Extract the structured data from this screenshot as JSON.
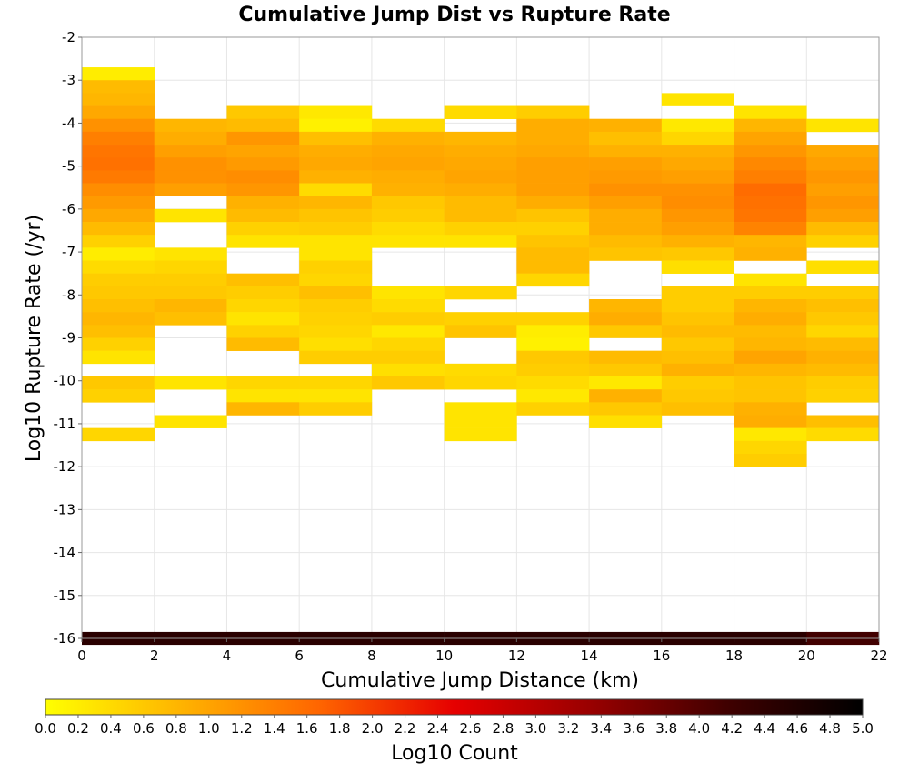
{
  "chart_data": {
    "type": "heatmap",
    "title": "Cumulative Jump Dist vs Rupture Rate",
    "xlabel": "Cumulative Jump Distance (km)",
    "ylabel": "Log10 Rupture Rate (/yr)",
    "xlim": [
      0,
      22
    ],
    "ylim": [
      -16,
      -2
    ],
    "x_ticks": [
      "0",
      "2",
      "4",
      "6",
      "8",
      "10",
      "12",
      "14",
      "16",
      "18",
      "20",
      "22"
    ],
    "y_ticks": [
      "-2",
      "-3",
      "-4",
      "-5",
      "-6",
      "-7",
      "-8",
      "-9",
      "-10",
      "-11",
      "-12",
      "-13",
      "-14",
      "-15",
      "-16"
    ],
    "grid": true,
    "x_bin_width": 2,
    "y_bin_height": 0.3,
    "value_label": "Log10 Count",
    "colorbar": {
      "label": "Log10 Count",
      "range": [
        0,
        5
      ],
      "ticks": [
        "0.0",
        "0.2",
        "0.4",
        "0.6",
        "0.8",
        "1.0",
        "1.2",
        "1.4",
        "1.6",
        "1.8",
        "2.0",
        "2.2",
        "2.4",
        "2.6",
        "2.8",
        "3.0",
        "3.2",
        "3.4",
        "3.6",
        "3.8",
        "4.0",
        "4.2",
        "4.4",
        "4.6",
        "4.8",
        "5.0"
      ],
      "colors": [
        "#ffff00",
        "#ffb300",
        "#ff6600",
        "#e60000",
        "#990000",
        "#400000",
        "#000000"
      ],
      "placement": "bottom"
    },
    "columns": [
      {
        "x_start": 0,
        "cells": [
          [
            -3.0,
            0.2
          ],
          [
            -3.3,
            0.75
          ],
          [
            -3.6,
            0.8
          ],
          [
            -3.9,
            0.95
          ],
          [
            -4.2,
            1.2
          ],
          [
            -4.5,
            1.4
          ],
          [
            -4.8,
            1.5
          ],
          [
            -5.1,
            1.55
          ],
          [
            -5.4,
            1.45
          ],
          [
            -5.7,
            1.25
          ],
          [
            -6.0,
            1.1
          ],
          [
            -6.3,
            0.95
          ],
          [
            -6.6,
            0.75
          ],
          [
            -6.9,
            0.5
          ],
          [
            -7.2,
            0.2
          ],
          [
            -7.5,
            0.4
          ],
          [
            -7.8,
            0.55
          ],
          [
            -8.1,
            0.6
          ],
          [
            -8.4,
            0.7
          ],
          [
            -8.7,
            0.8
          ],
          [
            -9.0,
            0.7
          ],
          [
            -9.3,
            0.5
          ],
          [
            -9.6,
            0.3
          ],
          [
            -10.2,
            0.6
          ],
          [
            -10.5,
            0.5
          ],
          [
            -11.4,
            0.45
          ]
        ]
      },
      {
        "x_start": 2,
        "cells": [
          [
            -4.2,
            0.8
          ],
          [
            -4.5,
            0.9
          ],
          [
            -4.8,
            1.05
          ],
          [
            -5.1,
            1.2
          ],
          [
            -5.4,
            1.2
          ],
          [
            -5.7,
            1.05
          ],
          [
            -6.3,
            0.3
          ],
          [
            -7.2,
            0.3
          ],
          [
            -7.5,
            0.45
          ],
          [
            -7.8,
            0.55
          ],
          [
            -8.1,
            0.6
          ],
          [
            -8.4,
            0.8
          ],
          [
            -8.7,
            0.7
          ],
          [
            -10.2,
            0.3
          ],
          [
            -11.1,
            0.3
          ]
        ]
      },
      {
        "x_start": 4,
        "cells": [
          [
            -3.9,
            0.6
          ],
          [
            -4.2,
            0.75
          ],
          [
            -4.5,
            1.15
          ],
          [
            -4.8,
            1.0
          ],
          [
            -5.1,
            1.1
          ],
          [
            -5.4,
            1.25
          ],
          [
            -5.7,
            1.15
          ],
          [
            -6.0,
            0.85
          ],
          [
            -6.3,
            0.75
          ],
          [
            -6.6,
            0.5
          ],
          [
            -6.9,
            0.3
          ],
          [
            -7.8,
            0.7
          ],
          [
            -8.1,
            0.55
          ],
          [
            -8.4,
            0.45
          ],
          [
            -8.7,
            0.3
          ],
          [
            -9.0,
            0.5
          ],
          [
            -9.3,
            0.75
          ],
          [
            -10.2,
            0.45
          ],
          [
            -10.5,
            0.3
          ],
          [
            -10.8,
            0.8
          ]
        ]
      },
      {
        "x_start": 6,
        "cells": [
          [
            -3.9,
            0.25
          ],
          [
            -4.2,
            0.15
          ],
          [
            -4.5,
            0.7
          ],
          [
            -4.8,
            0.9
          ],
          [
            -5.1,
            0.95
          ],
          [
            -5.4,
            0.85
          ],
          [
            -5.7,
            0.4
          ],
          [
            -6.0,
            0.8
          ],
          [
            -6.3,
            0.65
          ],
          [
            -6.6,
            0.55
          ],
          [
            -6.9,
            0.3
          ],
          [
            -7.2,
            0.3
          ],
          [
            -7.5,
            0.5
          ],
          [
            -7.8,
            0.45
          ],
          [
            -8.1,
            0.7
          ],
          [
            -8.4,
            0.55
          ],
          [
            -8.7,
            0.5
          ],
          [
            -9.0,
            0.45
          ],
          [
            -9.3,
            0.35
          ],
          [
            -9.6,
            0.55
          ],
          [
            -10.2,
            0.45
          ],
          [
            -10.5,
            0.3
          ],
          [
            -10.8,
            0.55
          ]
        ]
      },
      {
        "x_start": 8,
        "cells": [
          [
            -4.2,
            0.4
          ],
          [
            -4.5,
            0.85
          ],
          [
            -4.8,
            0.95
          ],
          [
            -5.1,
            1.0
          ],
          [
            -5.4,
            0.9
          ],
          [
            -5.7,
            0.85
          ],
          [
            -6.0,
            0.6
          ],
          [
            -6.3,
            0.55
          ],
          [
            -6.6,
            0.4
          ],
          [
            -6.9,
            0.3
          ],
          [
            -8.1,
            0.3
          ],
          [
            -8.4,
            0.4
          ],
          [
            -8.7,
            0.55
          ],
          [
            -9.0,
            0.25
          ],
          [
            -9.3,
            0.45
          ],
          [
            -9.6,
            0.55
          ],
          [
            -9.9,
            0.35
          ],
          [
            -10.2,
            0.6
          ]
        ]
      },
      {
        "x_start": 10,
        "cells": [
          [
            -3.9,
            0.4
          ],
          [
            -4.5,
            0.8
          ],
          [
            -4.8,
            0.9
          ],
          [
            -5.1,
            0.95
          ],
          [
            -5.4,
            1.0
          ],
          [
            -5.7,
            0.9
          ],
          [
            -6.0,
            0.75
          ],
          [
            -6.3,
            0.75
          ],
          [
            -6.6,
            0.5
          ],
          [
            -6.9,
            0.3
          ],
          [
            -8.1,
            0.45
          ],
          [
            -8.7,
            0.5
          ],
          [
            -9.0,
            0.65
          ],
          [
            -9.9,
            0.4
          ],
          [
            -10.2,
            0.45
          ],
          [
            -10.8,
            0.3
          ],
          [
            -11.1,
            0.3
          ],
          [
            -11.4,
            0.3
          ]
        ]
      },
      {
        "x_start": 12,
        "cells": [
          [
            -3.9,
            0.55
          ],
          [
            -4.2,
            0.9
          ],
          [
            -4.5,
            0.9
          ],
          [
            -4.8,
            0.95
          ],
          [
            -5.1,
            1.05
          ],
          [
            -5.4,
            1.05
          ],
          [
            -5.7,
            1.05
          ],
          [
            -6.0,
            0.9
          ],
          [
            -6.3,
            0.65
          ],
          [
            -6.6,
            0.5
          ],
          [
            -6.9,
            0.65
          ],
          [
            -7.2,
            0.75
          ],
          [
            -7.5,
            0.75
          ],
          [
            -7.8,
            0.45
          ],
          [
            -8.7,
            0.5
          ],
          [
            -9.0,
            0.2
          ],
          [
            -9.3,
            0.15
          ],
          [
            -9.6,
            0.6
          ],
          [
            -9.9,
            0.55
          ],
          [
            -10.2,
            0.4
          ],
          [
            -10.5,
            0.25
          ],
          [
            -10.8,
            0.5
          ]
        ]
      },
      {
        "x_start": 14,
        "cells": [
          [
            -4.2,
            0.85
          ],
          [
            -4.5,
            0.7
          ],
          [
            -4.8,
            0.85
          ],
          [
            -5.1,
            1.05
          ],
          [
            -5.4,
            1.1
          ],
          [
            -5.7,
            1.2
          ],
          [
            -6.0,
            1.05
          ],
          [
            -6.3,
            0.9
          ],
          [
            -6.6,
            0.9
          ],
          [
            -6.9,
            0.75
          ],
          [
            -7.2,
            0.65
          ],
          [
            -8.4,
            0.8
          ],
          [
            -8.7,
            0.9
          ],
          [
            -9.0,
            0.6
          ],
          [
            -9.6,
            0.75
          ],
          [
            -9.9,
            0.6
          ],
          [
            -10.2,
            0.25
          ],
          [
            -10.5,
            0.85
          ],
          [
            -10.8,
            0.6
          ],
          [
            -11.1,
            0.35
          ]
        ]
      },
      {
        "x_start": 16,
        "cells": [
          [
            -3.6,
            0.3
          ],
          [
            -4.2,
            0.25
          ],
          [
            -4.5,
            0.45
          ],
          [
            -4.8,
            0.85
          ],
          [
            -5.1,
            0.95
          ],
          [
            -5.4,
            1.05
          ],
          [
            -5.7,
            1.2
          ],
          [
            -6.0,
            1.25
          ],
          [
            -6.3,
            1.15
          ],
          [
            -6.6,
            1.05
          ],
          [
            -6.9,
            0.85
          ],
          [
            -7.2,
            0.6
          ],
          [
            -7.5,
            0.35
          ],
          [
            -8.1,
            0.55
          ],
          [
            -8.4,
            0.55
          ],
          [
            -8.7,
            0.65
          ],
          [
            -9.0,
            0.75
          ],
          [
            -9.3,
            0.6
          ],
          [
            -9.6,
            0.7
          ],
          [
            -9.9,
            0.85
          ],
          [
            -10.2,
            0.55
          ],
          [
            -10.5,
            0.6
          ],
          [
            -10.8,
            0.7
          ]
        ]
      },
      {
        "x_start": 18,
        "cells": [
          [
            -3.9,
            0.3
          ],
          [
            -4.2,
            0.8
          ],
          [
            -4.5,
            1.0
          ],
          [
            -4.8,
            1.15
          ],
          [
            -5.1,
            1.3
          ],
          [
            -5.4,
            1.4
          ],
          [
            -5.7,
            1.6
          ],
          [
            -6.0,
            1.55
          ],
          [
            -6.3,
            1.5
          ],
          [
            -6.6,
            1.35
          ],
          [
            -6.9,
            0.8
          ],
          [
            -7.2,
            0.85
          ],
          [
            -7.8,
            0.3
          ],
          [
            -8.1,
            0.55
          ],
          [
            -8.4,
            0.8
          ],
          [
            -8.7,
            0.9
          ],
          [
            -9.0,
            0.75
          ],
          [
            -9.3,
            0.8
          ],
          [
            -9.6,
            1.0
          ],
          [
            -9.9,
            0.8
          ],
          [
            -10.2,
            0.65
          ],
          [
            -10.5,
            0.65
          ],
          [
            -10.8,
            0.85
          ],
          [
            -11.1,
            0.9
          ],
          [
            -11.4,
            0.25
          ],
          [
            -11.7,
            0.45
          ],
          [
            -12.0,
            0.55
          ]
        ]
      },
      {
        "x_start": 20,
        "cells": [
          [
            -4.2,
            0.3
          ],
          [
            -4.8,
            0.95
          ],
          [
            -5.1,
            1.05
          ],
          [
            -5.4,
            1.15
          ],
          [
            -5.7,
            1.05
          ],
          [
            -6.0,
            1.15
          ],
          [
            -6.3,
            1.05
          ],
          [
            -6.6,
            0.75
          ],
          [
            -6.9,
            0.5
          ],
          [
            -7.5,
            0.35
          ],
          [
            -8.1,
            0.55
          ],
          [
            -8.4,
            0.7
          ],
          [
            -8.7,
            0.6
          ],
          [
            -9.0,
            0.45
          ],
          [
            -9.3,
            0.75
          ],
          [
            -9.6,
            0.85
          ],
          [
            -9.9,
            0.75
          ],
          [
            -10.2,
            0.55
          ],
          [
            -10.5,
            0.5
          ],
          [
            -11.1,
            0.7
          ],
          [
            -11.4,
            0.4
          ]
        ]
      }
    ],
    "baseline_row": {
      "y_start": -16.15,
      "y_end": -15.85,
      "values": [
        4.45,
        4.45,
        4.45,
        4.45,
        4.45,
        4.45,
        4.45,
        4.45,
        4.45,
        4.45,
        4.15
      ]
    }
  }
}
